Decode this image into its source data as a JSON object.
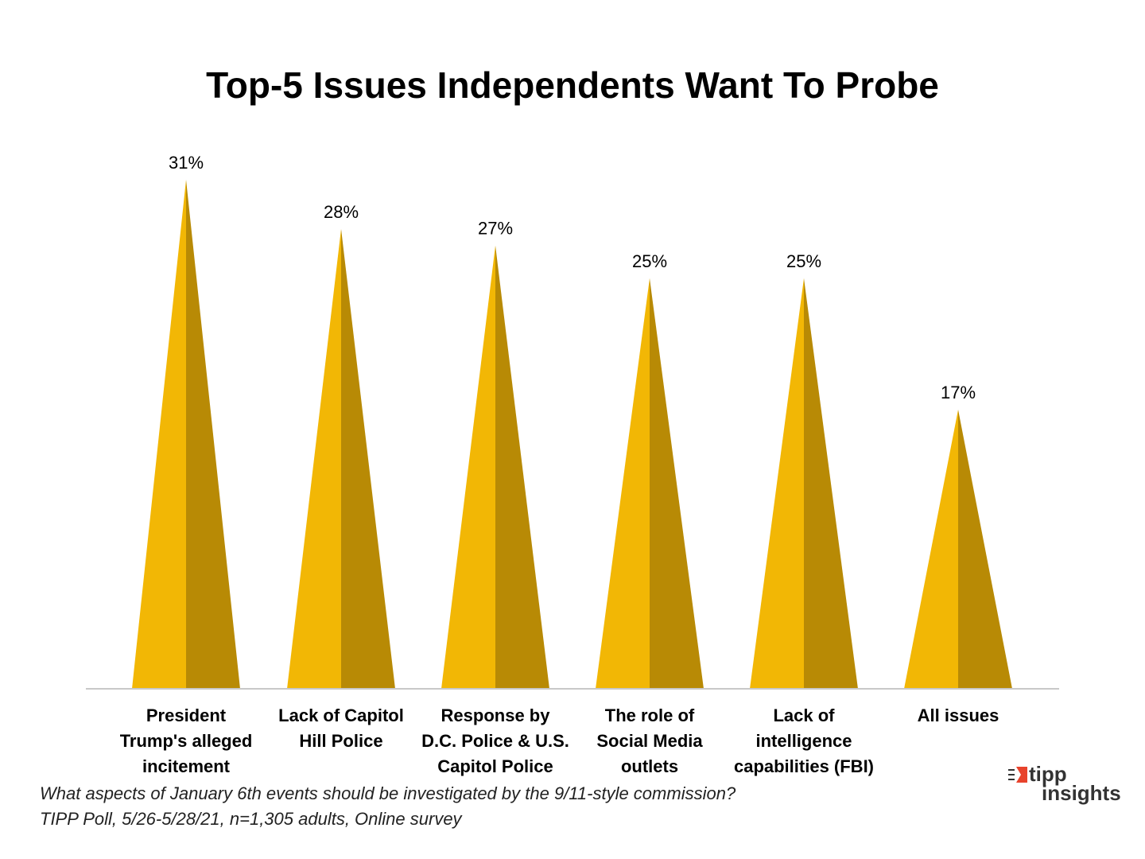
{
  "chart_data": {
    "type": "bar",
    "title": "Top-5 Issues Independents Want To Probe",
    "categories": [
      "President Trump's alleged incitement",
      "Lack of Capitol Hill Police",
      "Response by D.C. Police & U.S. Capitol Police",
      "The role of Social Media outlets",
      "Lack of intelligence capabilities (FBI)",
      "All issues"
    ],
    "category_lines": [
      [
        "President",
        "Trump's alleged",
        "incitement"
      ],
      [
        "Lack of Capitol",
        "Hill Police"
      ],
      [
        "Response by",
        "D.C. Police & U.S.",
        "Capitol Police"
      ],
      [
        "The role of",
        "Social Media",
        "outlets"
      ],
      [
        "Lack of",
        "intelligence",
        "capabilities (FBI)"
      ],
      [
        "All issues"
      ]
    ],
    "values": [
      31,
      28,
      27,
      25,
      25,
      17
    ],
    "data_labels": [
      "31%",
      "28%",
      "27%",
      "25%",
      "25%",
      "17%"
    ],
    "unit": "%",
    "ylim": [
      0,
      31
    ],
    "grid": false,
    "colors": {
      "light": "#f2b705",
      "dark": "#b88a05",
      "axis": "#c8c8c8"
    }
  },
  "footnote": {
    "line1": "What aspects of January 6th events should be investigated by the 9/11-style commission?",
    "line2": "TIPP Poll, 5/26-5/28/21, n=1,305 adults, Online survey"
  },
  "logo": {
    "line1": "tipp",
    "line2": "insights",
    "accent": "#e8432c"
  }
}
